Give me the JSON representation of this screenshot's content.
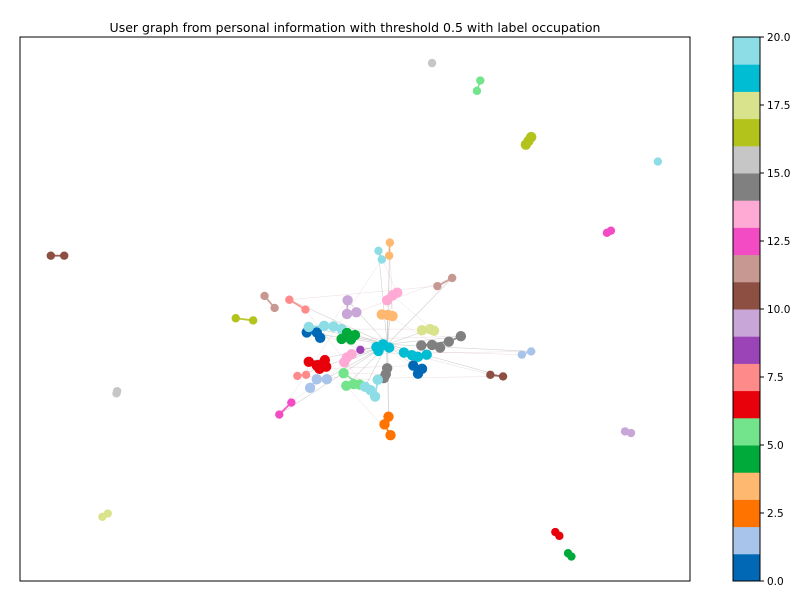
{
  "chart_data": {
    "type": "scatter",
    "subtype": "network-graph",
    "title": "User graph from personal information with threshold 0.5 with label occupation",
    "axes_visible": false,
    "colorbar": {
      "min": 0.0,
      "max": 20.0,
      "ticks": [
        "0.0",
        "2.5",
        "5.0",
        "7.5",
        "10.0",
        "12.5",
        "15.0",
        "17.5",
        "20.0"
      ],
      "colors": [
        "#0068b4",
        "#a9c4ea",
        "#ff7300",
        "#ffb870",
        "#00aa3a",
        "#74e48c",
        "#e8000b",
        "#ff8a8a",
        "#9b44b8",
        "#c9a6d8",
        "#8c4f42",
        "#c79892",
        "#f24bc4",
        "#ffa9d5",
        "#808080",
        "#c6c6c6",
        "#b4c21c",
        "#d9e38c",
        "#00bdd3",
        "#8ddde6"
      ]
    },
    "clusters": [
      {
        "name": "left-purple-pair",
        "label": 10,
        "nodes": [
          [
            0.046,
            0.402
          ],
          [
            0.066,
            0.402
          ]
        ]
      },
      {
        "name": "left-gray-blob",
        "label": 15,
        "nodes": [
          [
            0.145,
            0.651
          ],
          [
            0.144,
            0.655
          ]
        ]
      },
      {
        "name": "left-bottom-khaki",
        "label": 17,
        "nodes": [
          [
            0.123,
            0.882
          ],
          [
            0.131,
            0.876
          ]
        ]
      },
      {
        "name": "top-gray",
        "label": 15,
        "nodes": [
          [
            0.615,
            0.048
          ]
        ]
      },
      {
        "name": "top-green-pair",
        "label": 5,
        "nodes": [
          [
            0.687,
            0.08
          ],
          [
            0.682,
            0.099
          ]
        ]
      },
      {
        "name": "olive-chain",
        "label": 16,
        "nodes": [
          [
            0.755,
            0.198
          ],
          [
            0.759,
            0.191
          ],
          [
            0.763,
            0.184
          ]
        ]
      },
      {
        "name": "right-cyan",
        "label": 19,
        "nodes": [
          [
            0.952,
            0.229
          ]
        ]
      },
      {
        "name": "magenta-pair",
        "label": 12,
        "nodes": [
          [
            0.876,
            0.36
          ],
          [
            0.882,
            0.356
          ]
        ]
      },
      {
        "name": "right-purple",
        "label": 9,
        "nodes": [
          [
            0.903,
            0.725
          ],
          [
            0.912,
            0.728
          ]
        ]
      },
      {
        "name": "bottom-red",
        "label": 6,
        "nodes": [
          [
            0.799,
            0.91
          ],
          [
            0.805,
            0.917
          ]
        ]
      },
      {
        "name": "bottom-green",
        "label": 4,
        "nodes": [
          [
            0.818,
            0.949
          ],
          [
            0.823,
            0.955
          ]
        ]
      },
      {
        "name": "left-olive",
        "label": 16,
        "nodes": [
          [
            0.322,
            0.517
          ],
          [
            0.348,
            0.521
          ]
        ]
      },
      {
        "name": "left-rose",
        "label": 11,
        "nodes": [
          [
            0.365,
            0.476
          ],
          [
            0.38,
            0.498
          ]
        ]
      },
      {
        "name": "left-salmon",
        "label": 7,
        "nodes": [
          [
            0.402,
            0.483
          ],
          [
            0.426,
            0.501
          ]
        ]
      },
      {
        "name": "upper-cyan",
        "label": 19,
        "nodes": [
          [
            0.535,
            0.393
          ],
          [
            0.54,
            0.409
          ]
        ]
      },
      {
        "name": "upper-orange",
        "label": 3,
        "nodes": [
          [
            0.552,
            0.378
          ],
          [
            0.551,
            0.402
          ]
        ]
      },
      {
        "name": "upper-rose",
        "label": 11,
        "nodes": [
          [
            0.645,
            0.443
          ],
          [
            0.623,
            0.458
          ]
        ]
      },
      {
        "name": "center-pink",
        "label": 13,
        "nodes": [
          [
            0.556,
            0.475
          ],
          [
            0.548,
            0.484
          ],
          [
            0.563,
            0.47
          ]
        ]
      },
      {
        "name": "center-orange",
        "label": 3,
        "nodes": [
          [
            0.549,
            0.511
          ],
          [
            0.54,
            0.51
          ],
          [
            0.556,
            0.513
          ]
        ]
      },
      {
        "name": "center-lilac",
        "label": 9,
        "nodes": [
          [
            0.489,
            0.484
          ],
          [
            0.488,
            0.509
          ],
          [
            0.502,
            0.506
          ]
        ]
      },
      {
        "name": "light-khaki",
        "label": 17,
        "nodes": [
          [
            0.612,
            0.537
          ],
          [
            0.6,
            0.539
          ],
          [
            0.618,
            0.54
          ]
        ]
      },
      {
        "name": "gray-brown-chain",
        "label": 14,
        "nodes": [
          [
            0.658,
            0.55
          ],
          [
            0.64,
            0.56
          ],
          [
            0.599,
            0.567
          ],
          [
            0.615,
            0.566
          ],
          [
            0.627,
            0.571
          ]
        ]
      },
      {
        "name": "left-dark-blue",
        "label": 0,
        "nodes": [
          [
            0.428,
            0.543
          ],
          [
            0.443,
            0.543
          ],
          [
            0.448,
            0.553
          ]
        ]
      },
      {
        "name": "light-blue-group",
        "label": 19,
        "nodes": [
          [
            0.431,
            0.533
          ],
          [
            0.454,
            0.531
          ],
          [
            0.468,
            0.532
          ],
          [
            0.48,
            0.537
          ]
        ]
      },
      {
        "name": "center-green",
        "label": 4,
        "nodes": [
          [
            0.488,
            0.544
          ],
          [
            0.5,
            0.548
          ],
          [
            0.48,
            0.555
          ],
          [
            0.494,
            0.556
          ]
        ]
      },
      {
        "name": "center-cyan",
        "label": 18,
        "nodes": [
          [
            0.542,
            0.565
          ],
          [
            0.532,
            0.57
          ],
          [
            0.551,
            0.571
          ],
          [
            0.535,
            0.577
          ]
        ]
      },
      {
        "name": "purple-node",
        "label": 8,
        "nodes": [
          [
            0.508,
            0.575
          ]
        ]
      },
      {
        "name": "right-cyan-group",
        "label": 18,
        "nodes": [
          [
            0.573,
            0.58
          ],
          [
            0.585,
            0.585
          ],
          [
            0.594,
            0.588
          ],
          [
            0.607,
            0.584
          ]
        ]
      },
      {
        "name": "right-blue-group",
        "label": 0,
        "nodes": [
          [
            0.587,
            0.604
          ],
          [
            0.6,
            0.61
          ],
          [
            0.594,
            0.619
          ]
        ]
      },
      {
        "name": "light-blue-right",
        "label": 1,
        "nodes": [
          [
            0.763,
            0.578
          ],
          [
            0.749,
            0.584
          ]
        ]
      },
      {
        "name": "brown-right",
        "label": 10,
        "nodes": [
          [
            0.721,
            0.624
          ],
          [
            0.702,
            0.621
          ]
        ]
      },
      {
        "name": "red-group",
        "label": 6,
        "nodes": [
          [
            0.431,
            0.597
          ],
          [
            0.455,
            0.594
          ],
          [
            0.443,
            0.604
          ],
          [
            0.457,
            0.606
          ],
          [
            0.447,
            0.61
          ]
        ]
      },
      {
        "name": "pink-group",
        "label": 13,
        "nodes": [
          [
            0.484,
            0.598
          ],
          [
            0.488,
            0.589
          ],
          [
            0.495,
            0.583
          ]
        ]
      },
      {
        "name": "gray-center",
        "label": 14,
        "nodes": [
          [
            0.546,
            0.62
          ],
          [
            0.548,
            0.609
          ],
          [
            0.543,
            0.627
          ]
        ]
      },
      {
        "name": "salmon-group",
        "label": 7,
        "nodes": [
          [
            0.414,
            0.623
          ],
          [
            0.427,
            0.621
          ]
        ]
      },
      {
        "name": "light-blue-low",
        "label": 1,
        "nodes": [
          [
            0.433,
            0.645
          ],
          [
            0.443,
            0.629
          ],
          [
            0.458,
            0.629
          ]
        ]
      },
      {
        "name": "green-low",
        "label": 5,
        "nodes": [
          [
            0.487,
            0.641
          ],
          [
            0.498,
            0.638
          ],
          [
            0.507,
            0.639
          ],
          [
            0.483,
            0.618
          ]
        ]
      },
      {
        "name": "light-cyan-low",
        "label": 19,
        "nodes": [
          [
            0.515,
            0.643
          ],
          [
            0.523,
            0.649
          ],
          [
            0.53,
            0.661
          ],
          [
            0.534,
            0.63
          ]
        ]
      },
      {
        "name": "magenta-low",
        "label": 12,
        "nodes": [
          [
            0.387,
            0.694
          ],
          [
            0.405,
            0.672
          ]
        ]
      },
      {
        "name": "orange-low",
        "label": 2,
        "nodes": [
          [
            0.55,
            0.698
          ],
          [
            0.544,
            0.712
          ],
          [
            0.553,
            0.732
          ]
        ]
      }
    ]
  }
}
